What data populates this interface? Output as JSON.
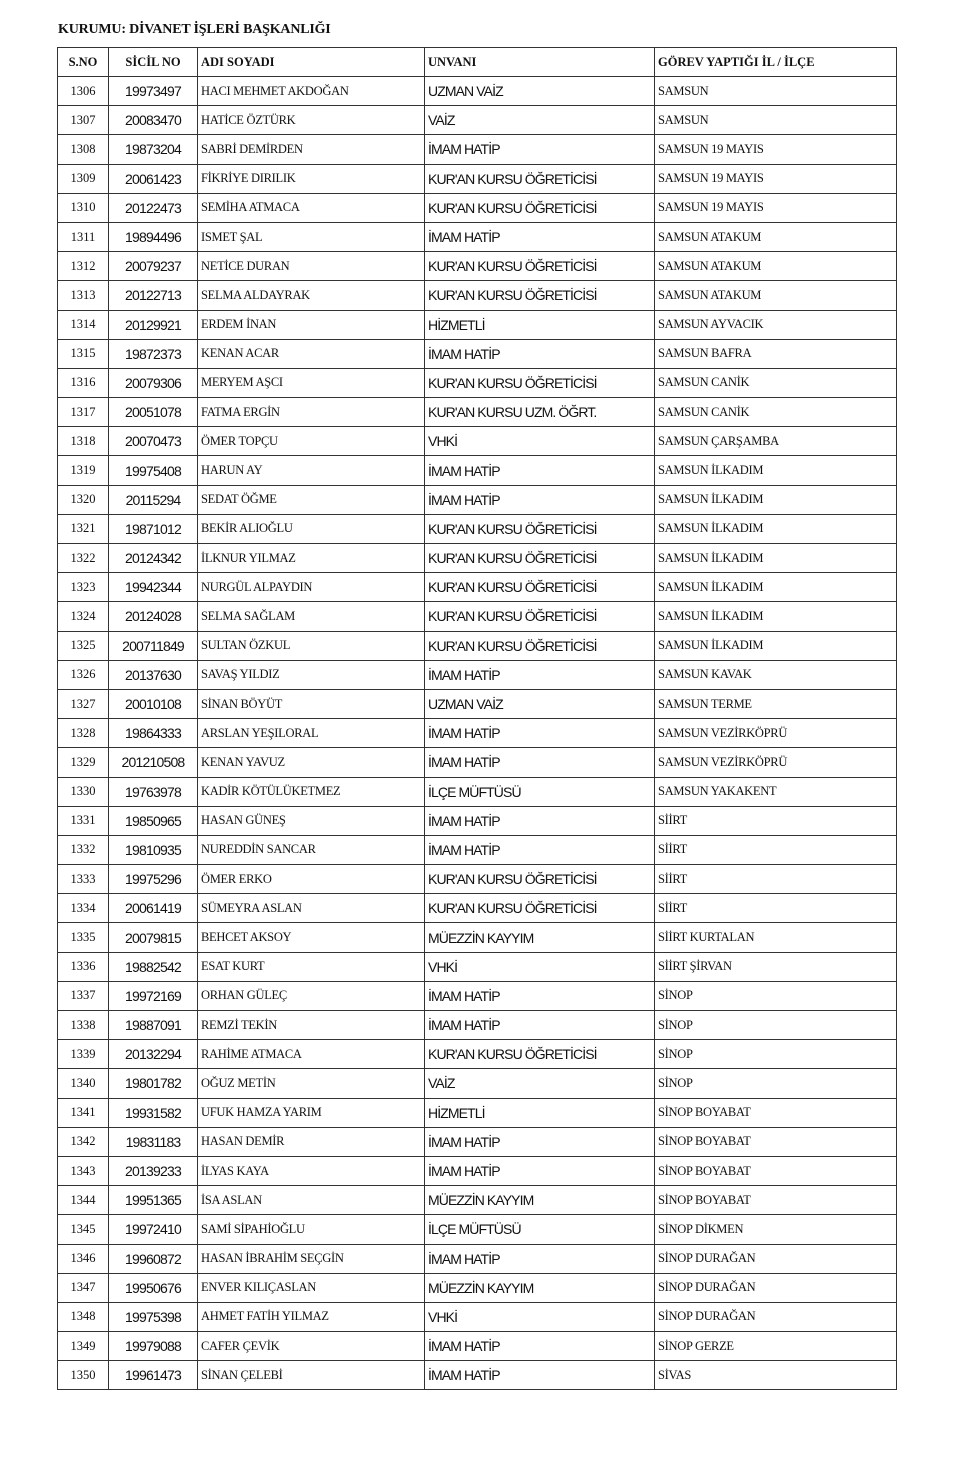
{
  "header": {
    "title": "KURUMU: DİVANET İŞLERİ BAŞKANLIĞI"
  },
  "columns": [
    "S.NO",
    "SİCİL NO",
    "ADI SOYADI",
    "UNVANI",
    "GÖREV YAPTIĞI İL / İLÇE"
  ],
  "rows": [
    [
      "1306",
      "19973497",
      "HACI MEHMET AKDOĞAN",
      "UZMAN VAİZ",
      "SAMSUN"
    ],
    [
      "1307",
      "20083470",
      "HATİCE ÖZTÜRK",
      "VAİZ",
      "SAMSUN"
    ],
    [
      "1308",
      "19873204",
      "SABRİ DEMİRDEN",
      "İMAM HATİP",
      "SAMSUN 19 MAYIS"
    ],
    [
      "1309",
      "20061423",
      "FİKRİYE DIRILIK",
      "KUR'AN KURSU ÖĞRETİCİSİ",
      "SAMSUN 19 MAYIS"
    ],
    [
      "1310",
      "20122473",
      "SEMİHA ATMACA",
      "KUR'AN KURSU ÖĞRETİCİSİ",
      "SAMSUN 19 MAYIS"
    ],
    [
      "1311",
      "19894496",
      "ISMET ŞAL",
      "İMAM HATİP",
      "SAMSUN ATAKUM"
    ],
    [
      "1312",
      "20079237",
      "NETİCE DURAN",
      "KUR'AN KURSU ÖĞRETİCİSİ",
      "SAMSUN ATAKUM"
    ],
    [
      "1313",
      "20122713",
      "SELMA ALDAYRAK",
      "KUR'AN KURSU ÖĞRETİCİSİ",
      "SAMSUN ATAKUM"
    ],
    [
      "1314",
      "20129921",
      "ERDEM İNAN",
      "HİZMETLİ",
      "SAMSUN AYVACIK"
    ],
    [
      "1315",
      "19872373",
      "KENAN ACAR",
      "İMAM HATİP",
      "SAMSUN BAFRA"
    ],
    [
      "1316",
      "20079306",
      "MERYEM AŞCI",
      "KUR'AN KURSU ÖĞRETİCİSİ",
      "SAMSUN CANİK"
    ],
    [
      "1317",
      "20051078",
      "FATMA ERGİN",
      "KUR'AN KURSU UZM. ÖĞRT.",
      "SAMSUN CANİK"
    ],
    [
      "1318",
      "20070473",
      "ÖMER TOPÇU",
      "VHKİ",
      "SAMSUN ÇARŞAMBA"
    ],
    [
      "1319",
      "19975408",
      "HARUN AY",
      "İMAM HATİP",
      "SAMSUN İLKADIM"
    ],
    [
      "1320",
      "20115294",
      "SEDAT ÖĞME",
      "İMAM HATİP",
      "SAMSUN İLKADIM"
    ],
    [
      "1321",
      "19871012",
      "BEKİR ALIOĞLU",
      "KUR'AN KURSU ÖĞRETİCİSİ",
      "SAMSUN İLKADIM"
    ],
    [
      "1322",
      "20124342",
      "İLKNUR YILMAZ",
      "KUR'AN KURSU ÖĞRETİCİSİ",
      "SAMSUN İLKADIM"
    ],
    [
      "1323",
      "19942344",
      "NURGÜL ALPAYDIN",
      "KUR'AN KURSU ÖĞRETİCİSİ",
      "SAMSUN İLKADIM"
    ],
    [
      "1324",
      "20124028",
      "SELMA SAĞLAM",
      "KUR'AN KURSU ÖĞRETİCİSİ",
      "SAMSUN İLKADIM"
    ],
    [
      "1325",
      "200711849",
      "SULTAN ÖZKUL",
      "KUR'AN KURSU ÖĞRETİCİSİ",
      "SAMSUN İLKADIM"
    ],
    [
      "1326",
      "20137630",
      "SAVAŞ YILDIZ",
      "İMAM HATİP",
      "SAMSUN KAVAK"
    ],
    [
      "1327",
      "20010108",
      "SİNAN BÖYÜT",
      "UZMAN VAİZ",
      "SAMSUN TERME"
    ],
    [
      "1328",
      "19864333",
      "ARSLAN YEŞILORAL",
      "İMAM HATİP",
      "SAMSUN VEZİRKÖPRÜ"
    ],
    [
      "1329",
      "201210508",
      "KENAN YAVUZ",
      "İMAM HATİP",
      "SAMSUN VEZİRKÖPRÜ"
    ],
    [
      "1330",
      "19763978",
      "KADİR KÖTÜLÜKETMEZ",
      "İLÇE MÜFTÜSÜ",
      "SAMSUN YAKAKENT"
    ],
    [
      "1331",
      "19850965",
      "HASAN GÜNEŞ",
      "İMAM HATİP",
      "SİİRT"
    ],
    [
      "1332",
      "19810935",
      "NUREDDİN SANCAR",
      "İMAM HATİP",
      "SİİRT"
    ],
    [
      "1333",
      "19975296",
      "ÖMER ERKO",
      "KUR'AN KURSU ÖĞRETİCİSİ",
      "SİİRT"
    ],
    [
      "1334",
      "20061419",
      "SÜMEYRA ASLAN",
      "KUR'AN KURSU ÖĞRETİCİSİ",
      "SİİRT"
    ],
    [
      "1335",
      "20079815",
      "BEHCET AKSOY",
      "MÜEZZİN KAYYIM",
      "SİİRT KURTALAN"
    ],
    [
      "1336",
      "19882542",
      "ESAT KURT",
      "VHKİ",
      "SİİRT ŞİRVAN"
    ],
    [
      "1337",
      "19972169",
      "ORHAN GÜLEÇ",
      "İMAM HATİP",
      "SİNOP"
    ],
    [
      "1338",
      "19887091",
      "REMZİ TEKİN",
      "İMAM HATİP",
      "SİNOP"
    ],
    [
      "1339",
      "20132294",
      "RAHİME ATMACA",
      "KUR'AN KURSU ÖĞRETİCİSİ",
      "SİNOP"
    ],
    [
      "1340",
      "19801782",
      "OĞUZ METİN",
      "VAİZ",
      "SİNOP"
    ],
    [
      "1341",
      "19931582",
      "UFUK HAMZA YARIM",
      "HİZMETLİ",
      "SİNOP BOYABAT"
    ],
    [
      "1342",
      "19831183",
      "HASAN DEMİR",
      "İMAM HATİP",
      "SİNOP BOYABAT"
    ],
    [
      "1343",
      "20139233",
      "İLYAS KAYA",
      "İMAM HATİP",
      "SİNOP BOYABAT"
    ],
    [
      "1344",
      "19951365",
      "İSA ASLAN",
      "MÜEZZİN KAYYIM",
      "SİNOP BOYABAT"
    ],
    [
      "1345",
      "19972410",
      "SAMİ SİPAHİOĞLU",
      "İLÇE MÜFTÜSÜ",
      "SİNOP DİKMEN"
    ],
    [
      "1346",
      "19960872",
      "HASAN İBRAHİM SEÇGİN",
      "İMAM HATİP",
      "SİNOP DURAĞAN"
    ],
    [
      "1347",
      "19950676",
      "ENVER KILIÇASLAN",
      "MÜEZZİN KAYYIM",
      "SİNOP DURAĞAN"
    ],
    [
      "1348",
      "19975398",
      "AHMET FATİH YILMAZ",
      "VHKİ",
      "SİNOP DURAĞAN"
    ],
    [
      "1349",
      "19979088",
      "CAFER ÇEVİK",
      "İMAM HATİP",
      "SİNOP GERZE"
    ],
    [
      "1350",
      "19961473",
      "SİNAN ÇELEBİ",
      "İMAM HATİP",
      "SİVAS"
    ]
  ]
}
